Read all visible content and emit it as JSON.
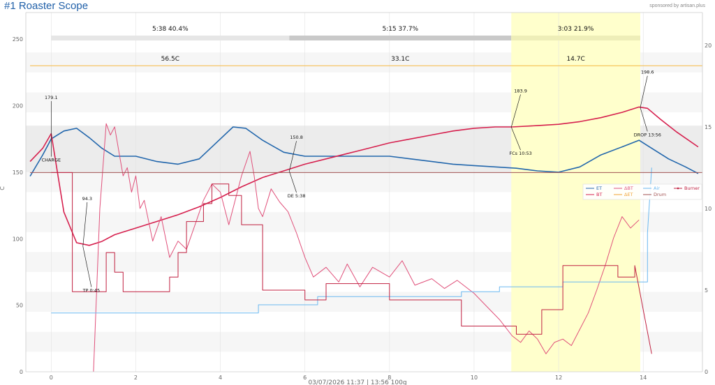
{
  "header": {
    "title": "#1 Roaster Scope",
    "sponsor": "sponsored by artisan.plus"
  },
  "footer": {
    "text": "03/07/2026  11:37   |   13:56   100g"
  },
  "colors": {
    "et": "#2166ac",
    "bt": "#d6204e",
    "delta_bt": "#e0507a",
    "delta_et": "#f0a030",
    "air": "#6ab8f0",
    "drum": "#a05050",
    "burner": "#c02040",
    "dry_end_line": "#f5b942",
    "fc_band": "#ffffcc",
    "phase_bar_light": "#e6e6e6",
    "phase_bar_dark": "#c9c9c9"
  },
  "phases": [
    {
      "time": "5:38",
      "pct": "40.4%",
      "ror": "56.5C"
    },
    {
      "time": "5:15",
      "pct": "37.7%",
      "ror": "33.1C"
    },
    {
      "time": "3:03",
      "pct": "21.9%",
      "ror": "14.7C"
    }
  ],
  "events": [
    {
      "value": "179.1",
      "label": "CHARGE"
    },
    {
      "value": "94.3",
      "label": "TP 0:45"
    },
    {
      "value": "150.8",
      "label": "DE 5:38"
    },
    {
      "value": "183.9",
      "label": "FCs 10:53"
    },
    {
      "value": "198.6",
      "label": "DROP 13:56"
    }
  ],
  "legend": [
    {
      "name": "ET",
      "icon": "line-icon",
      "color": "#2166ac"
    },
    {
      "name": "ΔBT",
      "icon": "line-icon",
      "color": "#e0507a"
    },
    {
      "name": "Air",
      "icon": "line-icon",
      "color": "#6ab8f0"
    },
    {
      "name": "Burner",
      "icon": "line-marker-icon",
      "color": "#c02040"
    },
    {
      "name": "BT",
      "icon": "line-icon",
      "color": "#d6204e"
    },
    {
      "name": "ΔET",
      "icon": "line-icon",
      "color": "#f0a030"
    },
    {
      "name": "Drum",
      "icon": "line-icon",
      "color": "#a05050"
    }
  ],
  "chart_data": {
    "type": "line",
    "title": "#1 Roaster Scope",
    "xlabel": "",
    "ylabel": "C",
    "xlim": [
      -0.6,
      15.4
    ],
    "ylim": [
      0,
      270
    ],
    "y2lim": [
      0,
      22
    ],
    "x_ticks": [
      0,
      2,
      4,
      6,
      8,
      10,
      12,
      14
    ],
    "y_ticks": [
      0,
      50,
      100,
      150,
      200,
      250
    ],
    "y2_ticks": [
      0,
      5,
      10,
      15,
      20
    ],
    "grid": true,
    "legend_position": "right-middle",
    "highlight_band": [
      10.88,
      13.93
    ],
    "reference_line": 230,
    "series": [
      {
        "name": "ET",
        "axis": "left",
        "x": [
          -0.5,
          -0.2,
          0,
          0.3,
          0.6,
          0.9,
          1.2,
          1.5,
          2,
          2.5,
          3,
          3.5,
          4,
          4.3,
          4.6,
          5,
          5.5,
          6,
          6.5,
          7,
          7.5,
          8,
          8.5,
          9,
          9.5,
          10,
          10.5,
          11,
          11.5,
          12,
          12.5,
          13,
          13.5,
          13.9,
          14.2,
          14.6,
          15,
          15.3
        ],
        "y": [
          147,
          163,
          175,
          181,
          183,
          176,
          168,
          162,
          162,
          158,
          156,
          160,
          175,
          184,
          183,
          174,
          165,
          162,
          162,
          162,
          162,
          162,
          160,
          158,
          156,
          155,
          154,
          153,
          151,
          150,
          154,
          163,
          169,
          174,
          168,
          160,
          154,
          149
        ]
      },
      {
        "name": "BT",
        "axis": "left",
        "x": [
          -0.5,
          -0.2,
          0,
          0.3,
          0.6,
          0.9,
          1.2,
          1.5,
          2,
          2.5,
          3,
          3.5,
          4,
          4.5,
          5,
          5.5,
          6,
          6.5,
          7,
          7.5,
          8,
          8.5,
          9,
          9.5,
          10,
          10.5,
          10.9,
          11.5,
          12,
          12.5,
          13,
          13.5,
          13.9,
          14.1,
          14.4,
          14.8,
          15.3
        ],
        "y": [
          158,
          168,
          179,
          120,
          97,
          95,
          98,
          103,
          108,
          113,
          118,
          124,
          131,
          139,
          146,
          151,
          156,
          160,
          164,
          168,
          172,
          175,
          178,
          181,
          183,
          184,
          184,
          185,
          186,
          188,
          191,
          195,
          199,
          198,
          190,
          180,
          169
        ]
      },
      {
        "name": "ΔBT",
        "axis": "right",
        "x": [
          1,
          1.15,
          1.3,
          1.4,
          1.5,
          1.6,
          1.7,
          1.8,
          1.9,
          2.0,
          2.1,
          2.2,
          2.4,
          2.6,
          2.8,
          3.0,
          3.2,
          3.4,
          3.6,
          3.8,
          4.0,
          4.2,
          4.4,
          4.5,
          4.7,
          4.8,
          4.9,
          5.0,
          5.2,
          5.4,
          5.6,
          5.8,
          6.0,
          6.2,
          6.5,
          6.8,
          7.0,
          7.3,
          7.6,
          8.0,
          8.3,
          8.6,
          9.0,
          9.3,
          9.6,
          10.0,
          10.3,
          10.6,
          10.9,
          11.1,
          11.3,
          11.5,
          11.7,
          11.9,
          12.1,
          12.3,
          12.5,
          12.7,
          12.9,
          13.1,
          13.3,
          13.5,
          13.7,
          13.9
        ],
        "y": [
          0,
          10,
          15.2,
          14.5,
          15,
          13.5,
          12,
          12.5,
          11,
          12,
          10,
          10.5,
          8,
          9.5,
          7,
          8,
          7.5,
          9,
          10.5,
          11.5,
          11,
          9,
          11,
          12,
          13.5,
          12,
          10,
          9.5,
          11.2,
          10.4,
          9.8,
          8.5,
          7,
          5.8,
          6.4,
          5.5,
          6.6,
          5.2,
          6.4,
          5.8,
          6.8,
          5.3,
          5.7,
          5.1,
          5.6,
          4.8,
          4.0,
          3.2,
          2.2,
          1.8,
          2.5,
          2,
          1.1,
          1.8,
          2.0,
          1.6,
          2.6,
          3.6,
          5,
          6.5,
          8.2,
          9.5,
          8.8,
          9.3
        ]
      },
      {
        "name": "Air",
        "axis": "right",
        "x": [
          0,
          4.9,
          4.9,
          6.3,
          6.3,
          9.7,
          9.7,
          10.6,
          10.6,
          12.1,
          12.1,
          14.1,
          14.1,
          14.2
        ],
        "y": [
          3.6,
          3.6,
          4.1,
          4.1,
          4.6,
          4.6,
          4.9,
          4.9,
          5.2,
          5.2,
          5.5,
          5.5,
          8.5,
          12.5
        ]
      },
      {
        "name": "Drum",
        "axis": "right",
        "x": [
          -0.5,
          15.4
        ],
        "y": [
          12.2,
          12.2
        ]
      },
      {
        "name": "Burner",
        "axis": "right",
        "x": [
          0,
          0.5,
          0.5,
          1.3,
          1.3,
          1.5,
          1.5,
          1.7,
          1.7,
          2.8,
          2.8,
          3.0,
          3.0,
          3.2,
          3.2,
          3.6,
          3.6,
          3.8,
          3.8,
          4.2,
          4.2,
          4.5,
          4.5,
          5.0,
          5.0,
          6.0,
          6.0,
          6.5,
          6.5,
          8.0,
          8.0,
          9.7,
          9.7,
          11.0,
          11.0,
          11.6,
          11.6,
          12.1,
          12.1,
          13.4,
          13.4,
          13.8,
          13.8,
          14.2
        ],
        "y": [
          12.2,
          12.2,
          4.9,
          4.9,
          7.3,
          7.3,
          6.1,
          6.1,
          4.9,
          4.9,
          5.8,
          5.8,
          7.3,
          7.3,
          9.2,
          9.2,
          10.3,
          10.3,
          11.5,
          11.5,
          10.8,
          10.8,
          9.0,
          9.0,
          5.0,
          5.0,
          4.4,
          4.4,
          5.4,
          5.4,
          4.4,
          4.4,
          2.8,
          2.8,
          2.3,
          2.3,
          3.8,
          3.8,
          6.5,
          6.5,
          5.8,
          5.8,
          6.5,
          1.1
        ]
      }
    ]
  }
}
